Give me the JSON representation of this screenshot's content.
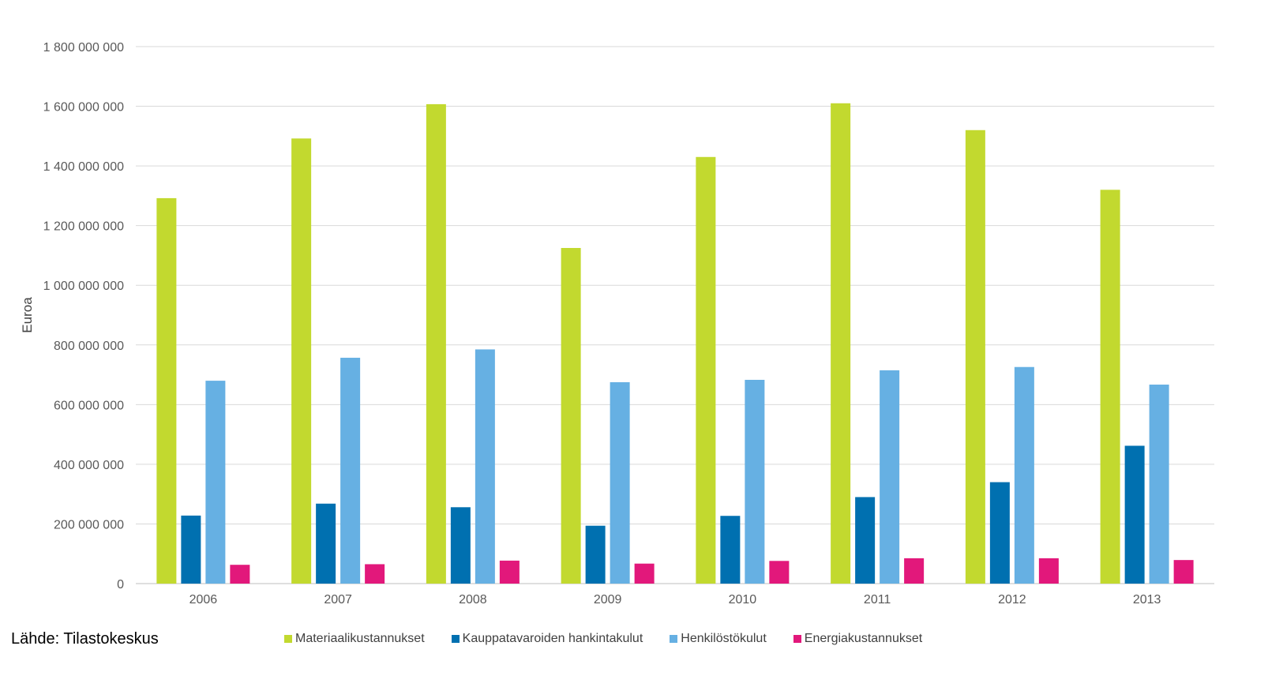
{
  "source_label": "Lähde: Tilastokeskus",
  "chart_data": {
    "type": "bar",
    "title": "",
    "xlabel": "",
    "ylabel": "Euroa",
    "ylim": [
      0,
      1800000000
    ],
    "yticks": [
      0,
      200000000,
      400000000,
      600000000,
      800000000,
      1000000000,
      1200000000,
      1400000000,
      1600000000,
      1800000000
    ],
    "ytick_labels": [
      "0",
      "200 000 000",
      "400 000 000",
      "600 000 000",
      "800 000 000",
      "1 000 000 000",
      "1 200 000 000",
      "1 400 000 000",
      "1 600 000 000",
      "1 800 000 000"
    ],
    "categories": [
      "2006",
      "2007",
      "2008",
      "2009",
      "2010",
      "2011",
      "2012",
      "2013"
    ],
    "grid": true,
    "legend_position": "bottom",
    "series": [
      {
        "name": "Materiaalikustannukset",
        "color": "#c2d92f",
        "values": [
          1292000000,
          1492000000,
          1607000000,
          1125000000,
          1430000000,
          1610000000,
          1520000000,
          1320000000
        ]
      },
      {
        "name": "Kauppatavaroiden hankintakulut",
        "color": "#0070b0",
        "values": [
          228000000,
          268000000,
          256000000,
          194000000,
          227000000,
          290000000,
          340000000,
          462000000
        ]
      },
      {
        "name": "Henkilöstökulut",
        "color": "#66b0e3",
        "values": [
          680000000,
          757000000,
          785000000,
          675000000,
          683000000,
          715000000,
          726000000,
          667000000
        ]
      },
      {
        "name": "Energiakustannukset",
        "color": "#e2187b",
        "values": [
          63000000,
          65000000,
          77000000,
          67000000,
          76000000,
          85000000,
          85000000,
          79000000
        ]
      }
    ]
  }
}
